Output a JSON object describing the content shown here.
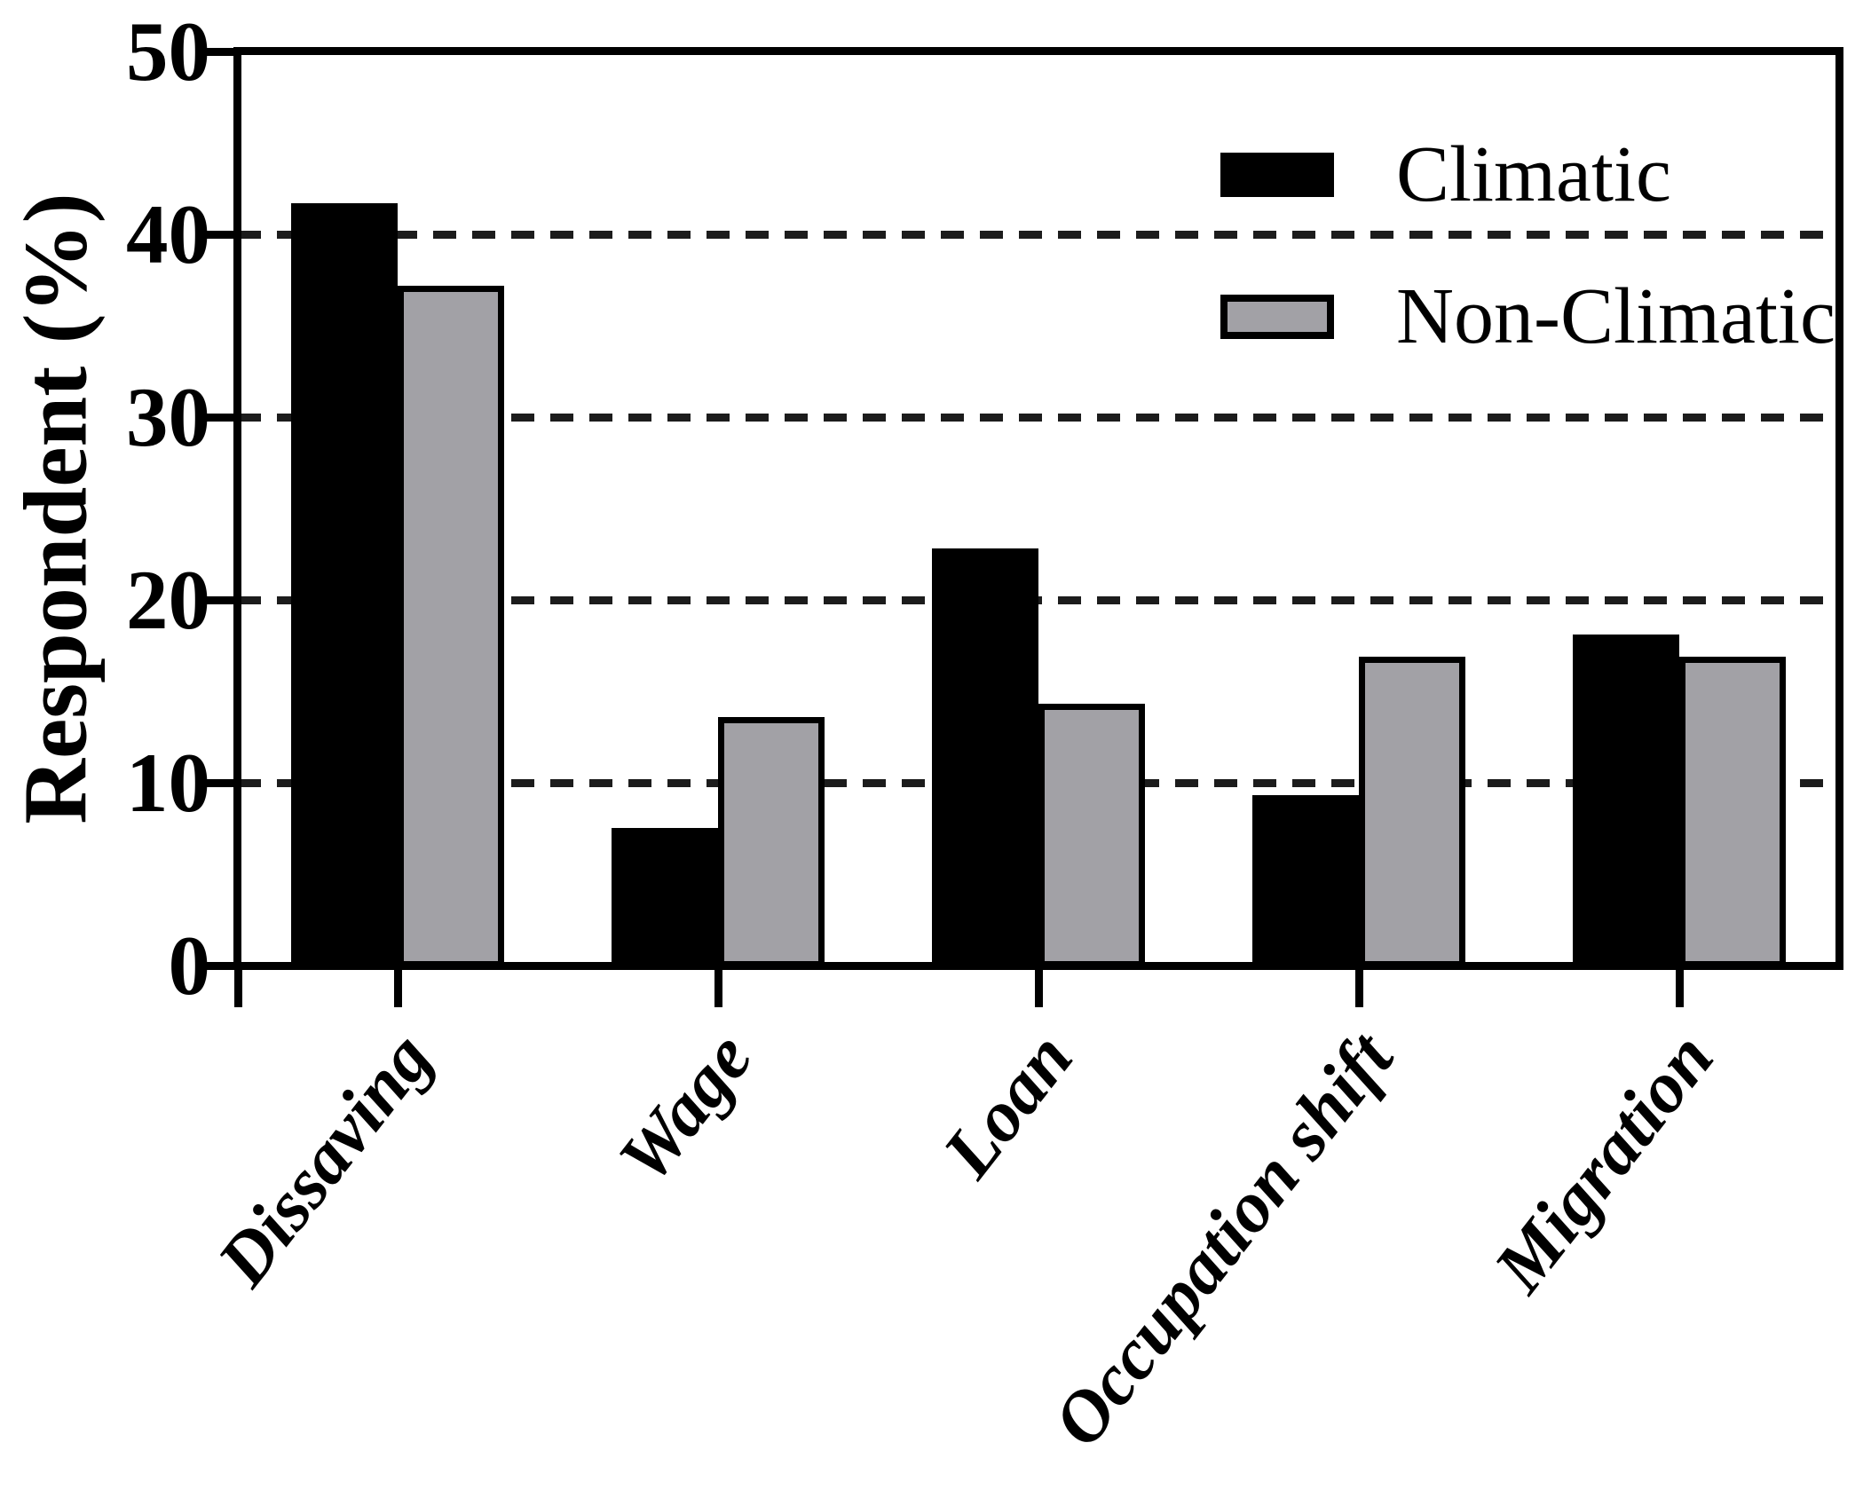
{
  "chart_data": {
    "type": "bar",
    "title": "",
    "xlabel": "",
    "ylabel": "Respondent (%)",
    "ylim": [
      0,
      50
    ],
    "yticks": [
      0,
      10,
      20,
      30,
      40,
      50
    ],
    "gridlines": {
      "values": [
        10,
        20,
        30,
        40
      ],
      "style": "dashed",
      "color": "#1c1c1c"
    },
    "grid_on": true,
    "legend_position": "top-right-inside",
    "categories": [
      "Dissaving",
      "Wage",
      "Loan",
      "Occupation shift",
      "Migration"
    ],
    "series": [
      {
        "name": "Climatic",
        "fill": "#000000",
        "border": "#000000",
        "values": [
          41.8,
          7.6,
          22.9,
          9.4,
          18.2
        ]
      },
      {
        "name": "Non-Climatic",
        "fill": "#a2a1a6",
        "border": "#000000",
        "values": [
          37.3,
          13.7,
          14.4,
          17.0,
          17.0
        ]
      }
    ],
    "axis_color": "#000000",
    "background_color": "#ffffff"
  }
}
